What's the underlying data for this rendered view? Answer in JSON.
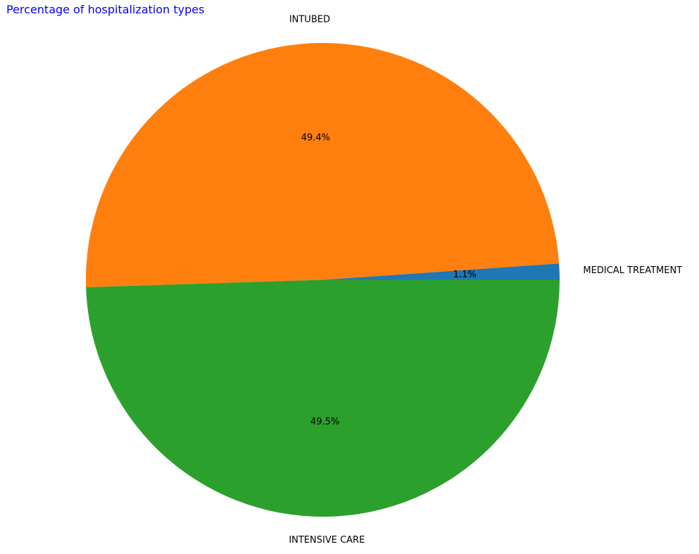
{
  "chart_data": {
    "type": "pie",
    "title": "Percentage of hospitalization types",
    "title_color": "#0000ff",
    "slices": [
      {
        "label": "MEDICAL TREATMENT",
        "value": 1.1,
        "pct_label": "1.1%",
        "color": "#1f77b4"
      },
      {
        "label": "INTUBED",
        "value": 49.4,
        "pct_label": "49.4%",
        "color": "#ff7f0e"
      },
      {
        "label": "INTENSIVE CARE",
        "value": 49.5,
        "pct_label": "49.5%",
        "color": "#2ca02c"
      }
    ]
  }
}
